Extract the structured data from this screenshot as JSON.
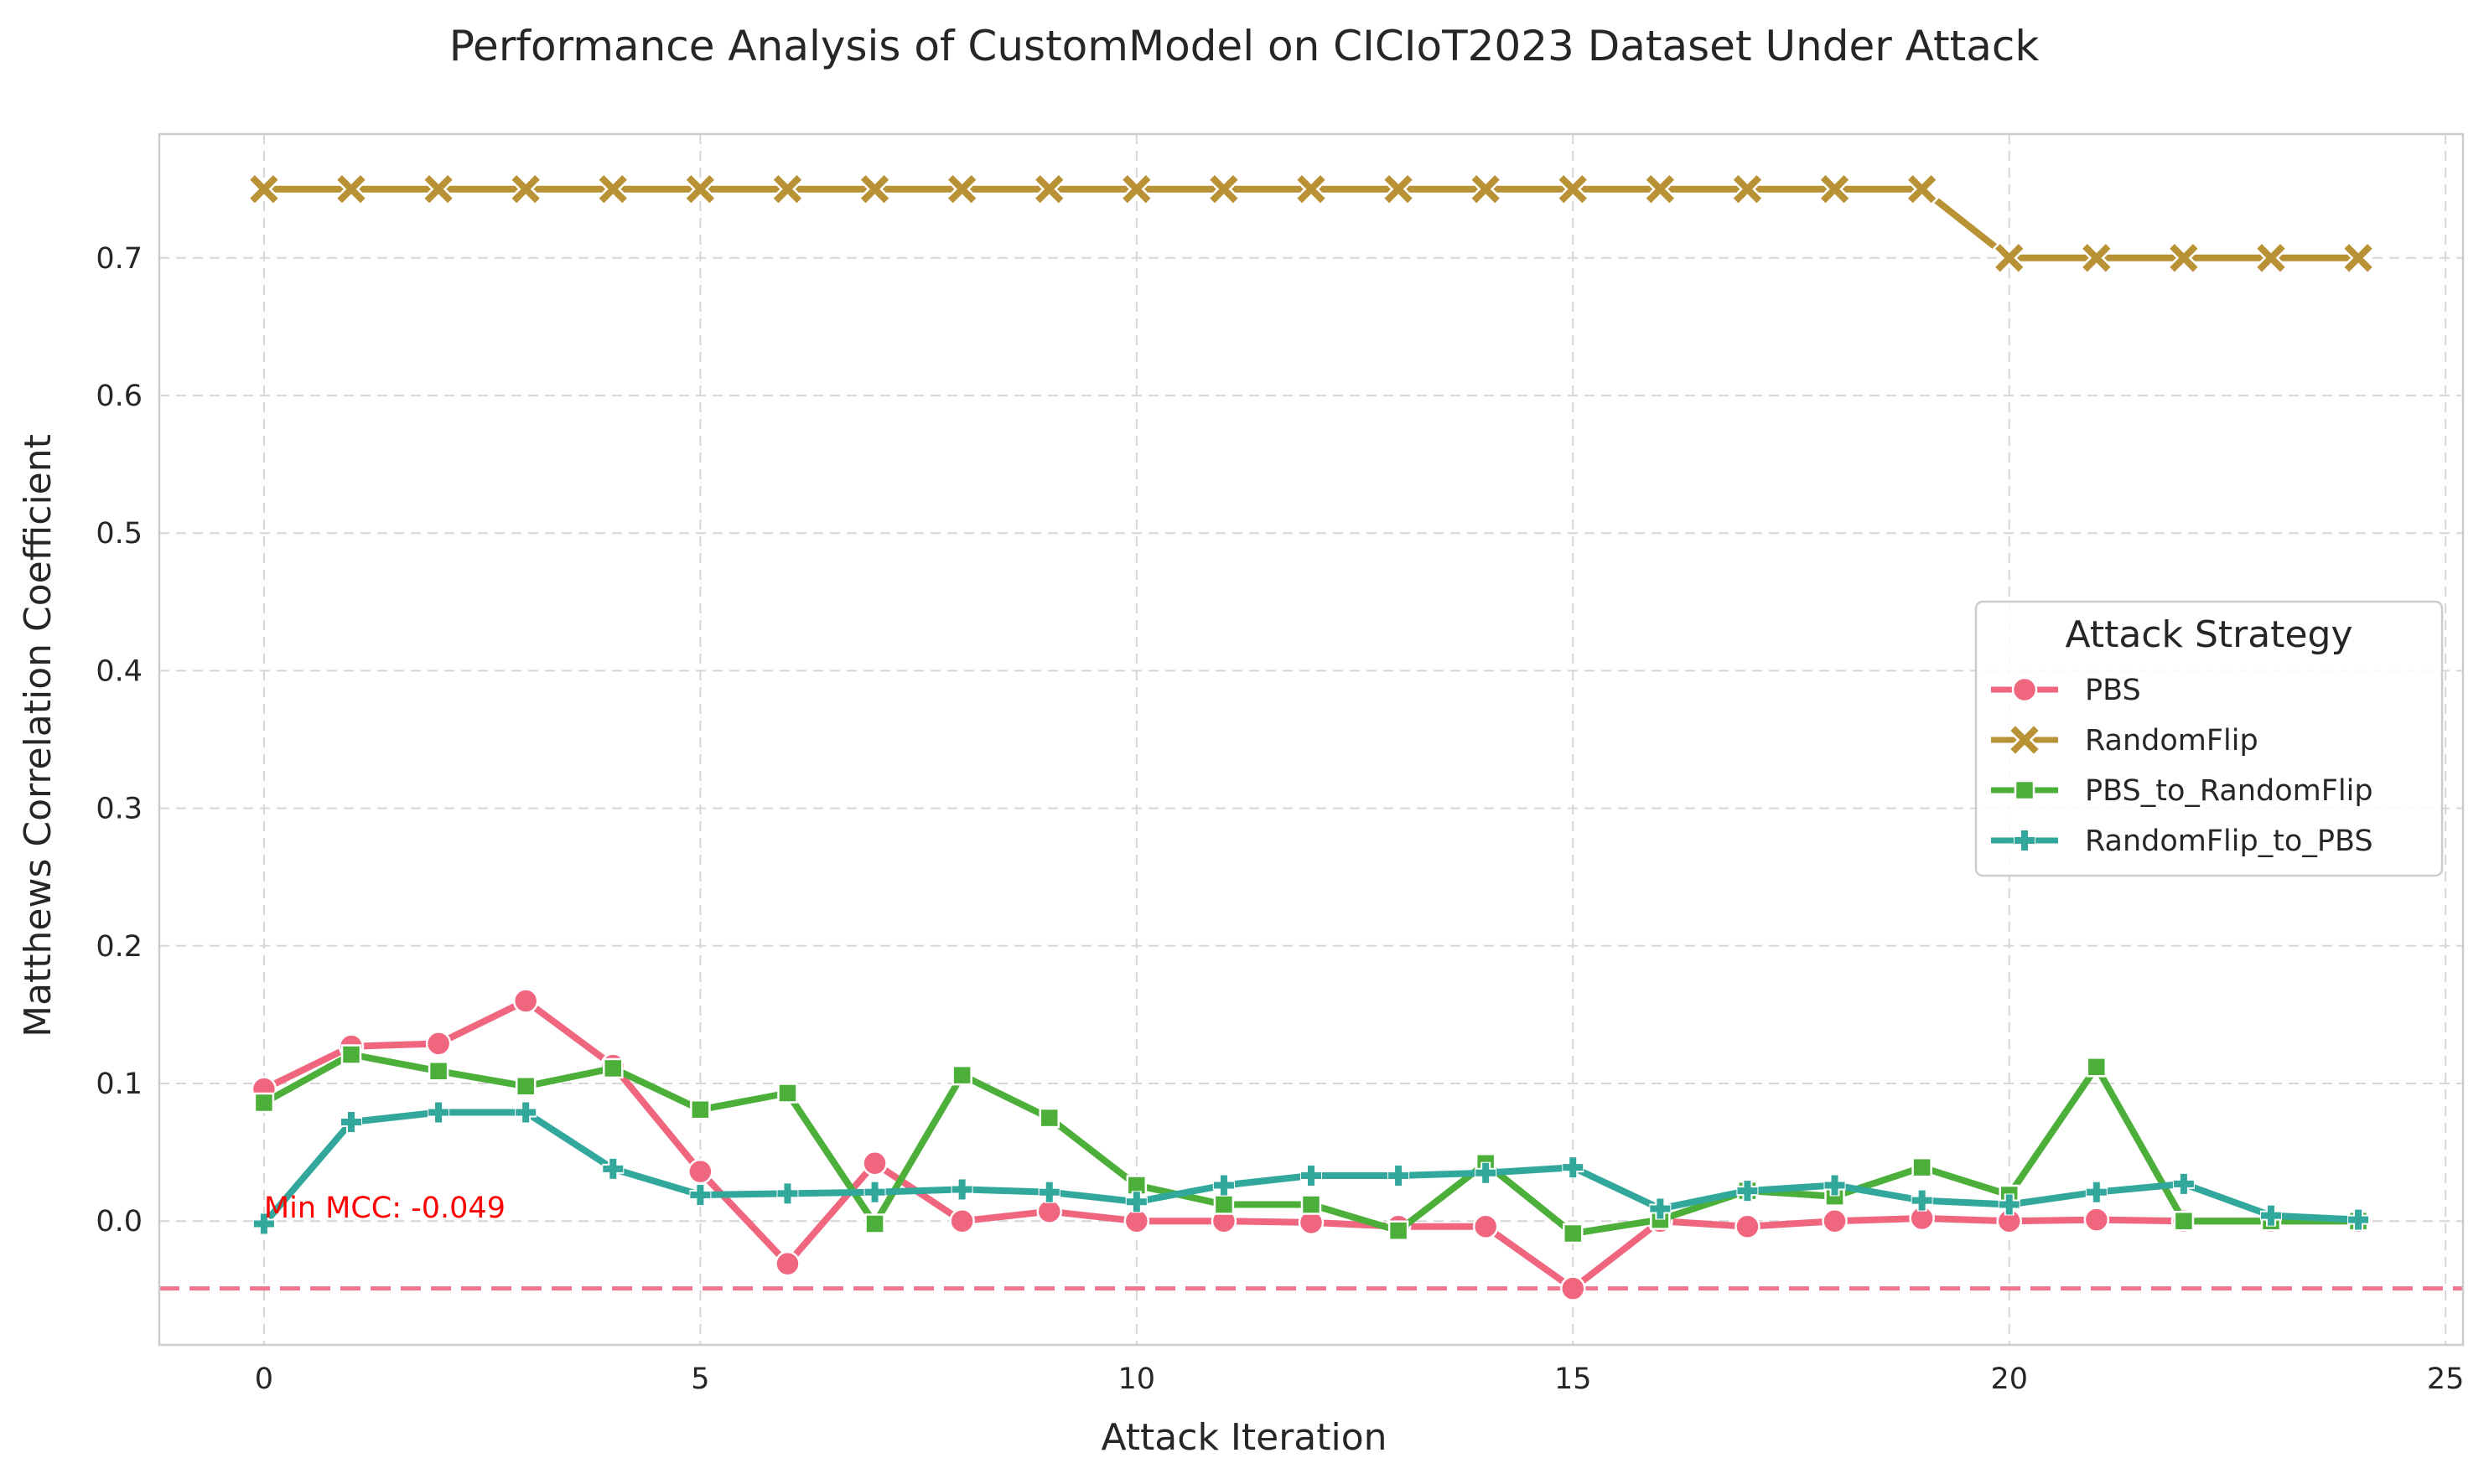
{
  "colors": {
    "PBS": "#f0667f",
    "RandomFlip": "#b89234",
    "PBS_to_RandomFlip": "#4caf3a",
    "RandomFlip_to_PBS": "#31a89b",
    "min_line": "#f0667f",
    "annotation": "#ff0000"
  },
  "chart_data": {
    "type": "line",
    "title": "Performance Analysis of CustomModel on CICIoT2023 Dataset Under Attack",
    "xlabel": "Attack Iteration",
    "ylabel": "Matthews Correlation Coefficient",
    "xlim": [
      -1.2,
      25.2
    ],
    "ylim": [
      -0.09,
      0.79
    ],
    "xticks": [
      0,
      5,
      10,
      15,
      20,
      25
    ],
    "yticks": [
      0.0,
      0.1,
      0.2,
      0.3,
      0.4,
      0.5,
      0.6,
      0.7
    ],
    "grid": true,
    "legend": {
      "title": "Attack Strategy",
      "placement": "center-right"
    },
    "x": [
      0,
      1,
      2,
      3,
      4,
      5,
      6,
      7,
      8,
      9,
      10,
      11,
      12,
      13,
      14,
      15,
      16,
      17,
      18,
      19,
      20,
      21,
      22,
      23,
      24
    ],
    "series": [
      {
        "name": "PBS",
        "marker": "circle",
        "values": [
          0.096,
          0.127,
          0.129,
          0.16,
          0.113,
          0.036,
          -0.031,
          0.042,
          0.0,
          0.007,
          0.0,
          0.0,
          -0.001,
          -0.004,
          -0.004,
          -0.049,
          0.0,
          -0.004,
          0.0,
          0.002,
          0.0,
          0.001,
          0.0,
          0.0,
          0.0
        ]
      },
      {
        "name": "RandomFlip",
        "marker": "x",
        "values": [
          0.75,
          0.75,
          0.75,
          0.75,
          0.75,
          0.75,
          0.75,
          0.75,
          0.75,
          0.75,
          0.75,
          0.75,
          0.75,
          0.75,
          0.75,
          0.75,
          0.75,
          0.75,
          0.75,
          0.75,
          0.7,
          0.7,
          0.7,
          0.7,
          0.7
        ]
      },
      {
        "name": "PBS_to_RandomFlip",
        "marker": "square",
        "values": [
          0.086,
          0.121,
          0.109,
          0.098,
          0.111,
          0.081,
          0.093,
          -0.002,
          0.106,
          0.075,
          0.026,
          0.012,
          0.012,
          -0.007,
          0.042,
          -0.009,
          0.001,
          0.022,
          0.018,
          0.039,
          0.019,
          0.112,
          0.0,
          0.0,
          0.0
        ]
      },
      {
        "name": "RandomFlip_to_PBS",
        "marker": "plus",
        "values": [
          -0.002,
          0.072,
          0.079,
          0.079,
          0.038,
          0.019,
          0.02,
          0.021,
          0.023,
          0.021,
          0.014,
          0.026,
          0.033,
          0.033,
          0.035,
          0.039,
          0.009,
          0.022,
          0.026,
          0.015,
          0.012,
          0.021,
          0.027,
          0.004,
          0.001
        ]
      }
    ],
    "reference_line": {
      "y": -0.049
    },
    "annotation": {
      "text": "Min MCC: -0.049",
      "x": 0,
      "y": 0.0
    }
  }
}
